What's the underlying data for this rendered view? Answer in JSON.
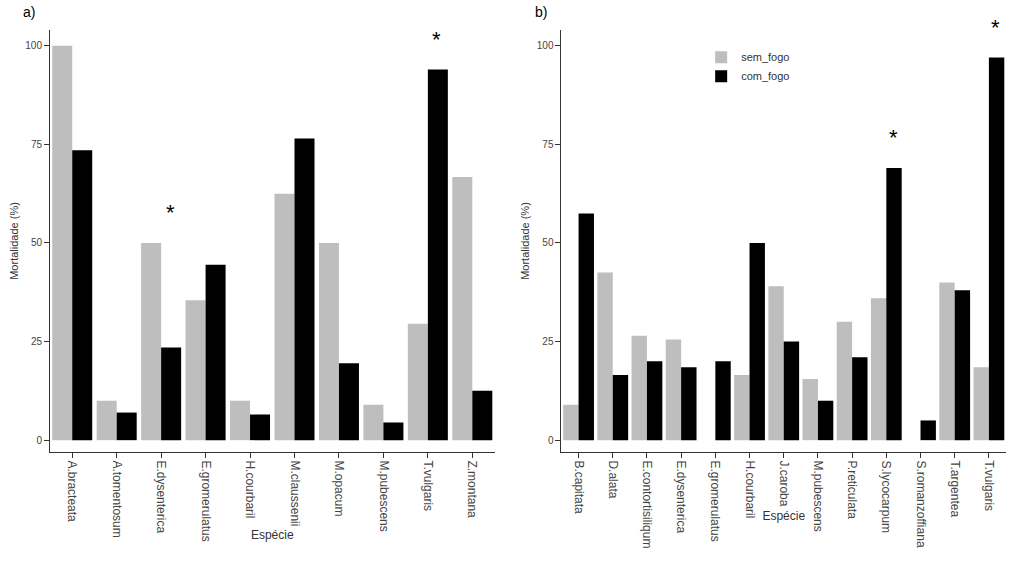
{
  "chart_data": [
    {
      "type": "bar",
      "title": "a)",
      "x_label": "Espécie",
      "y_label": "Mortalidade (%)",
      "categories": [
        "A.bracteata",
        "A.tomentosum",
        "E.dysenterica",
        "E.gromerulatus",
        "H.courbaril",
        "M.claussenii",
        "M.opacum",
        "M.pubescens",
        "T.vulgaris",
        "Z.montana"
      ],
      "series": [
        {
          "name": "sem_fogo",
          "color": "#bebebe",
          "values": [
            100,
            10,
            50,
            35.5,
            10,
            62.5,
            50,
            9,
            29.5,
            66.7
          ]
        },
        {
          "name": "com_fogo",
          "color": "#000000",
          "values": [
            73.5,
            7,
            23.5,
            44.5,
            6.5,
            76.5,
            19.5,
            4.5,
            94,
            12.5
          ]
        }
      ],
      "annotations": [
        {
          "text": "*",
          "category": "E.dysenterica",
          "y": 54
        },
        {
          "text": "*",
          "category": "T.vulgaris",
          "y": 98
        }
      ],
      "ylim": [
        -3,
        104
      ],
      "yticks": [
        0,
        25,
        50,
        75,
        100
      ],
      "grid": false
    },
    {
      "type": "bar",
      "title": "b)",
      "x_label": "Espécie",
      "y_label": "Mortalidade (%)",
      "categories": [
        "B.capitata",
        "D.alata",
        "E.contortisiliqum",
        "E.dysenterica",
        "E.gromerulatus",
        "H.courbaril",
        "J.caroba",
        "M.pubescens",
        "P.reticulata",
        "S.lycocarpum",
        "S.romanzoffiana",
        "T.argentea",
        "T.vulgaris"
      ],
      "series": [
        {
          "name": "sem_fogo",
          "color": "#bebebe",
          "values": [
            9,
            42.5,
            26.5,
            25.5,
            0,
            16.5,
            39,
            15.5,
            30,
            36,
            0,
            40,
            18.5
          ]
        },
        {
          "name": "com_fogo",
          "color": "#000000",
          "values": [
            57.5,
            16.5,
            20,
            18.5,
            20,
            50,
            25,
            10,
            21,
            69,
            5,
            38,
            97
          ]
        }
      ],
      "annotations": [
        {
          "text": "*",
          "category": "S.lycocarpum",
          "y": 73
        },
        {
          "text": "*",
          "category": "T.vulgaris",
          "y": 101
        }
      ],
      "legend": "top",
      "ylim": [
        -3,
        104
      ],
      "yticks": [
        0,
        25,
        50,
        75,
        100
      ],
      "grid": false
    }
  ]
}
